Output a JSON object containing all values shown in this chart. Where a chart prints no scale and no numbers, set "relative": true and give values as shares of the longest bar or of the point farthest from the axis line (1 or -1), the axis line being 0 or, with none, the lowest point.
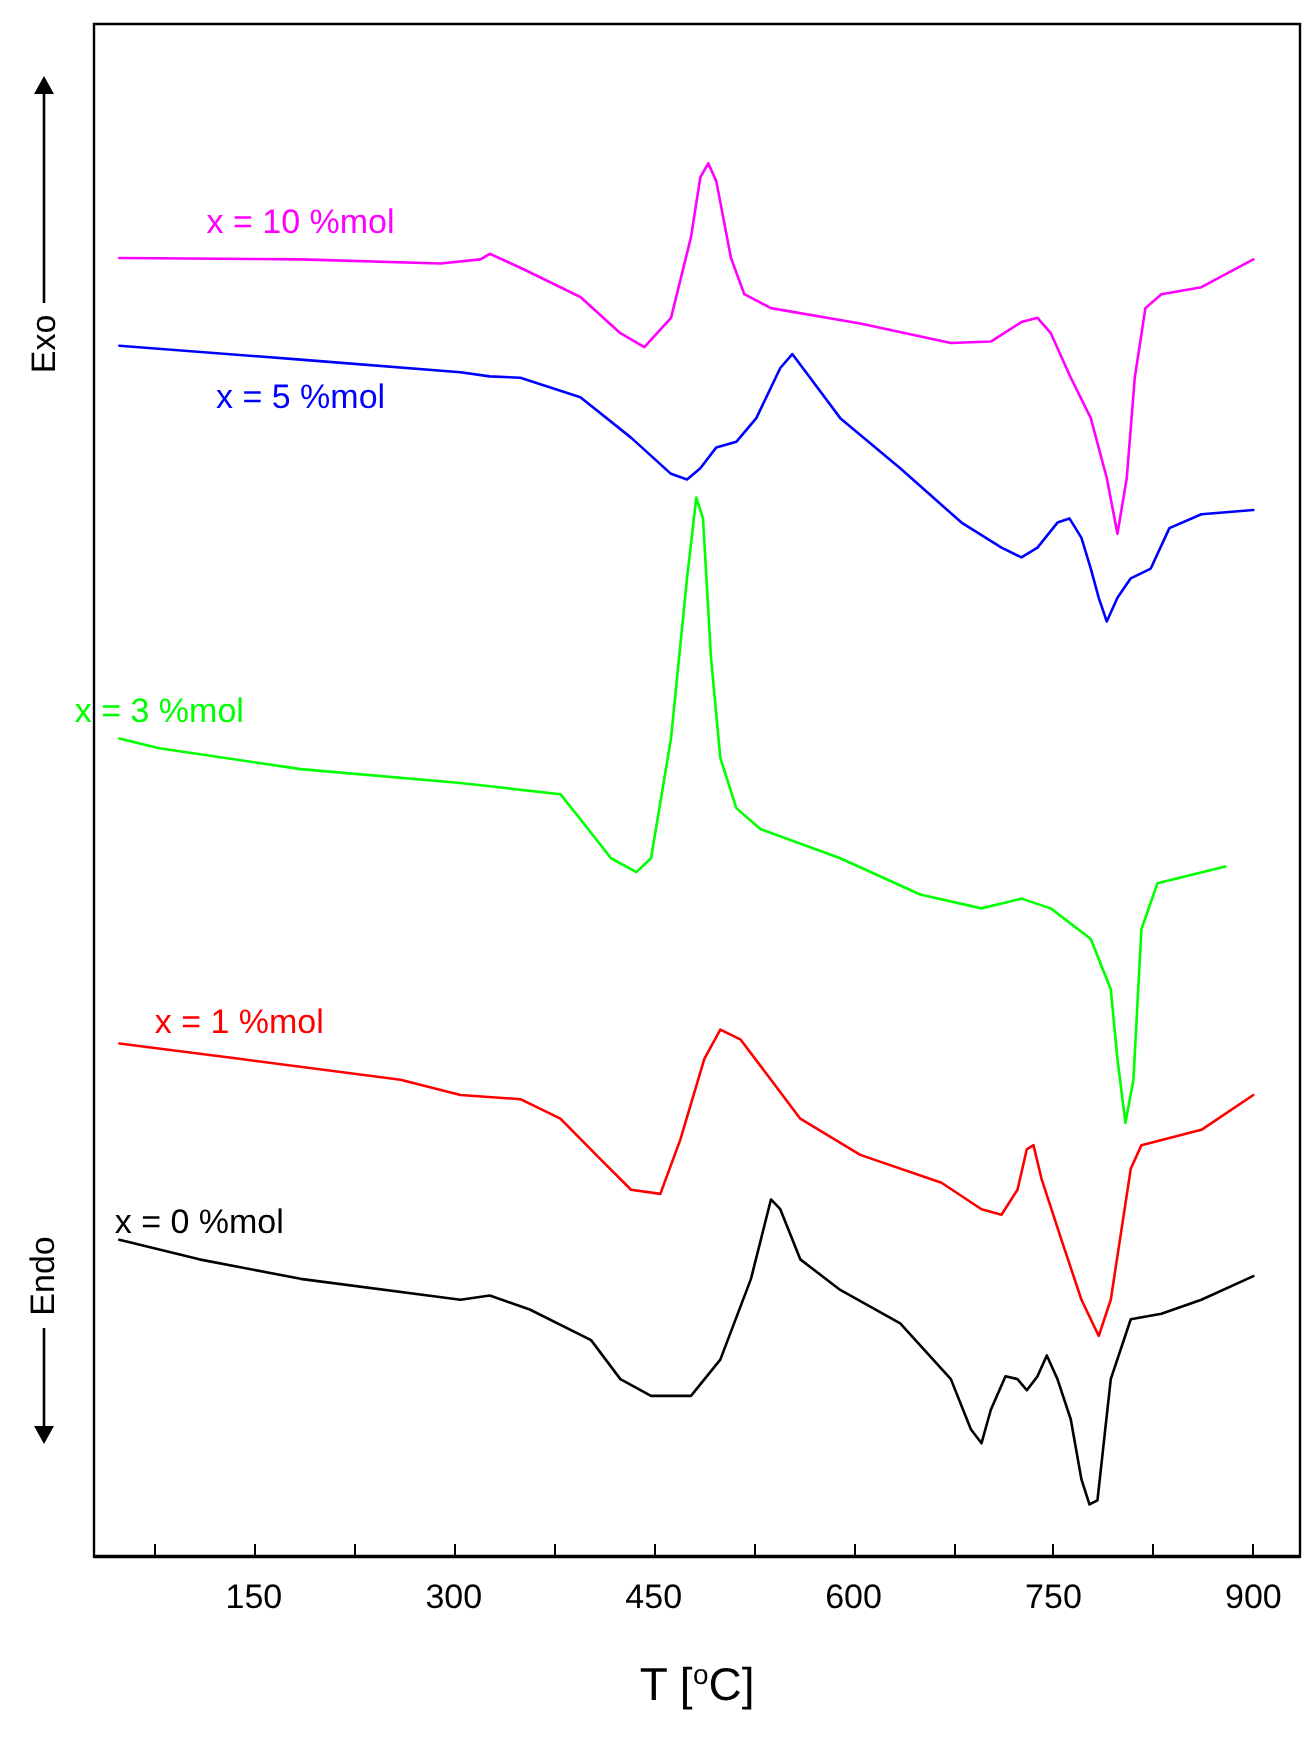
{
  "chart_data": {
    "type": "line",
    "relative": true,
    "xlabel": "T [$^{o}$C]",
    "annotations": [
      "Exo",
      "Endo"
    ],
    "xlim": [
      30,
      935
    ],
    "xticks": [
      {
        "value": 75,
        "label": null
      },
      150,
      {
        "value": 225,
        "label": null
      },
      300,
      {
        "value": 375,
        "label": null
      },
      450,
      {
        "value": 525,
        "label": null
      },
      600,
      {
        "value": 675,
        "label": null
      },
      750,
      {
        "value": 825,
        "label": null
      },
      900
    ],
    "grid": false,
    "legend": false,
    "series": [
      {
        "name": "x = 10 %mol",
        "color": "#ff00ff",
        "x": [
          49,
          185,
          290,
          320,
          327,
          350,
          395,
          425,
          443,
          463,
          478,
          485,
          491,
          497,
          508,
          518,
          538,
          605,
          673,
          703,
          726,
          738,
          748,
          763,
          778,
          790,
          798,
          805,
          811,
          819,
          831,
          861,
          900
        ],
        "values": [
          0.932,
          0.931,
          0.928,
          0.931,
          0.935,
          0.925,
          0.904,
          0.878,
          0.868,
          0.889,
          0.947,
          0.99,
          1,
          0.987,
          0.932,
          0.906,
          0.896,
          0.885,
          0.871,
          0.872,
          0.886,
          0.889,
          0.878,
          0.846,
          0.817,
          0.774,
          0.734,
          0.774,
          0.846,
          0.896,
          0.906,
          0.911,
          0.931
        ]
      },
      {
        "name": "x = 5 %mol",
        "color": "#0000ff",
        "x": [
          49,
          185,
          305,
          327,
          350,
          395,
          433,
          463,
          475,
          485,
          497,
          512,
          527,
          545,
          554,
          565,
          590,
          635,
          681,
          711,
          726,
          738,
          753,
          762,
          771,
          778,
          784,
          790,
          798,
          808,
          823,
          837,
          861,
          900
        ],
        "values": [
          0.869,
          0.859,
          0.85,
          0.847,
          0.846,
          0.832,
          0.803,
          0.777,
          0.773,
          0.781,
          0.796,
          0.8,
          0.817,
          0.853,
          0.863,
          0.849,
          0.817,
          0.781,
          0.742,
          0.724,
          0.717,
          0.724,
          0.742,
          0.745,
          0.731,
          0.709,
          0.688,
          0.671,
          0.688,
          0.702,
          0.709,
          0.738,
          0.748,
          0.751
        ]
      },
      {
        "name": "x = 3 %mol",
        "color": "#00ff00",
        "x": [
          49,
          79,
          185,
          305,
          380,
          395,
          418,
          437,
          448,
          463,
          475,
          482,
          487,
          493,
          500,
          512,
          530,
          590,
          650,
          696,
          726,
          748,
          778,
          793,
          798,
          804,
          810,
          816,
          828,
          879
        ],
        "values": [
          0.587,
          0.58,
          0.565,
          0.555,
          0.547,
          0.529,
          0.501,
          0.491,
          0.501,
          0.587,
          0.702,
          0.76,
          0.745,
          0.645,
          0.573,
          0.537,
          0.522,
          0.501,
          0.475,
          0.465,
          0.472,
          0.465,
          0.443,
          0.407,
          0.357,
          0.311,
          0.342,
          0.45,
          0.483,
          0.495
        ]
      },
      {
        "name": "x = 1 %mol",
        "color": "#ff0000",
        "x": [
          49,
          139,
          260,
          305,
          350,
          380,
          410,
          433,
          455,
          470,
          488,
          500,
          515,
          538,
          560,
          605,
          666,
          696,
          711,
          723,
          730,
          735,
          741,
          756,
          771,
          784,
          793,
          808,
          816,
          861,
          900
        ],
        "values": [
          0.368,
          0.357,
          0.342,
          0.331,
          0.328,
          0.314,
          0.285,
          0.263,
          0.26,
          0.299,
          0.357,
          0.378,
          0.371,
          0.342,
          0.314,
          0.288,
          0.268,
          0.249,
          0.245,
          0.263,
          0.292,
          0.295,
          0.271,
          0.227,
          0.184,
          0.158,
          0.184,
          0.278,
          0.295,
          0.306,
          0.331
        ]
      },
      {
        "name": "x = 0 %mol",
        "color": "#000000",
        "x": [
          49,
          109,
          185,
          305,
          327,
          357,
          403,
          425,
          448,
          478,
          500,
          523,
          538,
          545,
          560,
          590,
          635,
          673,
          688,
          696,
          703,
          714,
          723,
          730,
          738,
          745,
          753,
          763,
          771,
          777,
          783,
          793,
          808,
          831,
          861,
          900
        ],
        "values": [
          0.227,
          0.213,
          0.199,
          0.184,
          0.187,
          0.177,
          0.155,
          0.127,
          0.115,
          0.115,
          0.141,
          0.199,
          0.256,
          0.249,
          0.213,
          0.191,
          0.167,
          0.127,
          0.091,
          0.081,
          0.105,
          0.129,
          0.127,
          0.119,
          0.129,
          0.144,
          0.127,
          0.098,
          0.055,
          0.037,
          0.04,
          0.127,
          0.17,
          0.174,
          0.184,
          0.201
        ]
      }
    ]
  }
}
